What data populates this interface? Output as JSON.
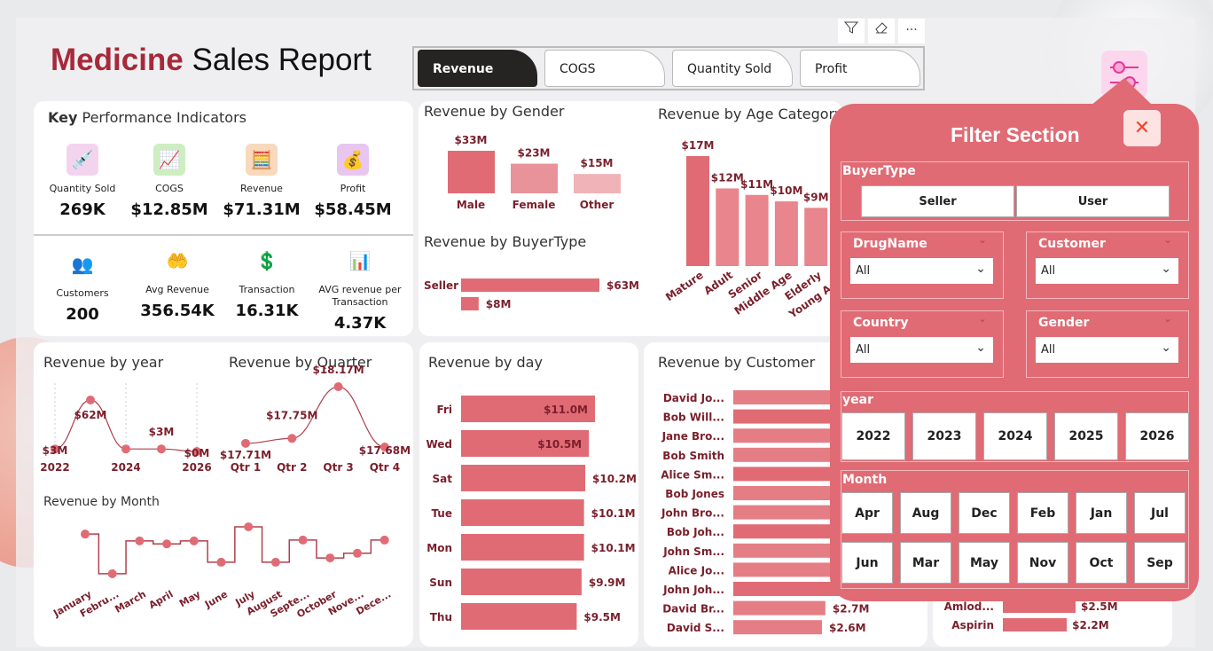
{
  "title": {
    "part1": "Medicine",
    "part2": " Sales Report"
  },
  "toolbar": {
    "filter_icon": "filter-icon",
    "eraser_icon": "eraser-icon",
    "more_icon": "more-icon",
    "more": "···"
  },
  "tabs": [
    {
      "label": "Revenue",
      "active": true
    },
    {
      "label": "COGS"
    },
    {
      "label": "Quantity Sold"
    },
    {
      "label": "Profit"
    }
  ],
  "kpi": {
    "title_bold": "Key",
    "title_rest": " Performance Indicators",
    "items": [
      {
        "label": "Quantity Sold",
        "value": "269K",
        "icon": "medicine-icon"
      },
      {
        "label": "COGS",
        "value": "$12.85M",
        "icon": "chart-money-icon"
      },
      {
        "label": "Revenue",
        "value": "$71.31M",
        "icon": "calculator-icon"
      },
      {
        "label": "Profit",
        "value": "$58.45M",
        "icon": "profit-bag-icon"
      },
      {
        "label": "Customers",
        "value": "200",
        "icon": "customers-icon"
      },
      {
        "label": "Avg Revenue",
        "value": "356.54K",
        "icon": "coin-hand-icon"
      },
      {
        "label": "Transaction",
        "value": "16.31K",
        "icon": "currency-icon"
      },
      {
        "label": "AVG revenue per Transaction",
        "value": "4.37K",
        "icon": "growth-person-icon"
      }
    ]
  },
  "colors": {
    "accent": "#e06b74",
    "dark_red": "#7a1f2b",
    "panel": "#e06b74",
    "title_red": "#a6293a"
  },
  "chart_data": [
    {
      "id": "gender",
      "type": "bar",
      "title": "Revenue by Gender",
      "categories": [
        "Male",
        "Female",
        "Other"
      ],
      "values": [
        33,
        23,
        15
      ],
      "labels": [
        "$33M",
        "$23M",
        "$15M"
      ],
      "unit": "$M"
    },
    {
      "id": "buyer",
      "type": "bar",
      "orientation": "horizontal",
      "title": "Revenue by BuyerType",
      "categories": [
        "Seller",
        ""
      ],
      "values": [
        63,
        8
      ],
      "labels": [
        "$63M",
        "$8M"
      ]
    },
    {
      "id": "age",
      "type": "bar",
      "title": "Revenue by Age Category",
      "categories": [
        "Mature",
        "Adult",
        "Senior",
        "Middle Age",
        "Elderly",
        "Young Adult"
      ],
      "values": [
        17,
        12,
        11,
        10,
        9,
        null
      ],
      "labels": [
        "$17M",
        "$12M",
        "$11M",
        "$10M",
        "$9M",
        ""
      ]
    },
    {
      "id": "year",
      "type": "line",
      "title": "Revenue by year",
      "x": [
        2022,
        2023,
        2024,
        2025,
        2026
      ],
      "values": [
        3,
        62,
        3,
        3,
        0
      ],
      "labels": [
        "$3M",
        "$62M",
        "",
        "$3M",
        "$0M"
      ],
      "ticks": [
        "2022",
        "2024",
        "2026"
      ]
    },
    {
      "id": "quarter",
      "type": "line",
      "title": "Revenue by Quarter",
      "categories": [
        "Qtr 1",
        "Qtr 2",
        "Qtr 3",
        "Qtr 4"
      ],
      "values": [
        17.71,
        17.75,
        18.17,
        17.68
      ],
      "labels": [
        "$17.71M",
        "$17.75M",
        "$18.17M",
        "$17.68M"
      ]
    },
    {
      "id": "month",
      "type": "line",
      "title": "Revenue by Month",
      "categories": [
        "January",
        "Febru...",
        "March",
        "April",
        "May",
        "June",
        "July",
        "August",
        "Septe...",
        "October",
        "Nove...",
        "Dece..."
      ],
      "values": [
        6.13,
        5.2,
        5.97,
        5.9,
        5.97,
        5.47,
        6.3,
        5.47,
        5.99,
        5.57,
        5.68,
        5.99
      ]
    },
    {
      "id": "day",
      "type": "bar",
      "orientation": "horizontal",
      "title": "Revenue by day",
      "categories": [
        "Fri",
        "Wed",
        "Sat",
        "Tue",
        "Mon",
        "Sun",
        "Thu"
      ],
      "values": [
        11.0,
        10.5,
        10.2,
        10.1,
        10.1,
        9.9,
        9.5
      ],
      "labels": [
        "$11.0M",
        "$10.5M",
        "$10.2M",
        "$10.1M",
        "$10.1M",
        "$9.9M",
        "$9.5M"
      ]
    },
    {
      "id": "customer",
      "type": "bar",
      "orientation": "horizontal",
      "title": "Revenue by Customer",
      "categories": [
        "David Jo...",
        "Bob Will...",
        "Jane Bro...",
        "Bob Smith",
        "Alice Sm...",
        "Bob Jones",
        "John Bro...",
        "Bob Joh...",
        "John Sm...",
        "Alice Jo...",
        "John Joh...",
        "David Br...",
        "David S..."
      ],
      "values": [
        null,
        null,
        null,
        null,
        null,
        null,
        null,
        null,
        null,
        null,
        null,
        2.7,
        2.6
      ],
      "labels": [
        "",
        "",
        "",
        "",
        "",
        "",
        "",
        "",
        "",
        "",
        "",
        "$2.7M",
        "$2.6M"
      ]
    },
    {
      "id": "drug",
      "type": "bar",
      "orientation": "horizontal",
      "categories": [
        "Amlod...",
        "Aspirin"
      ],
      "values": [
        2.5,
        2.2
      ],
      "labels": [
        "$2.5M",
        "$2.2M"
      ]
    }
  ],
  "filter": {
    "title": "Filter Section",
    "open_icon": "sliders-icon",
    "close": "✕",
    "buyer_type": {
      "title": "BuyerType",
      "options": [
        "Seller",
        "User"
      ]
    },
    "dropdowns": [
      {
        "title": "DrugName",
        "value": "All"
      },
      {
        "title": "Customer",
        "value": "All"
      },
      {
        "title": "Country",
        "value": "All"
      },
      {
        "title": "Gender",
        "value": "All"
      }
    ],
    "year": {
      "title": "year",
      "options": [
        "2022",
        "2023",
        "2024",
        "2025",
        "2026"
      ]
    },
    "month": {
      "title": "Month",
      "options": [
        "Apr",
        "Aug",
        "Dec",
        "Feb",
        "Jan",
        "Jul",
        "Jun",
        "Mar",
        "May",
        "Nov",
        "Oct",
        "Sep"
      ]
    }
  }
}
